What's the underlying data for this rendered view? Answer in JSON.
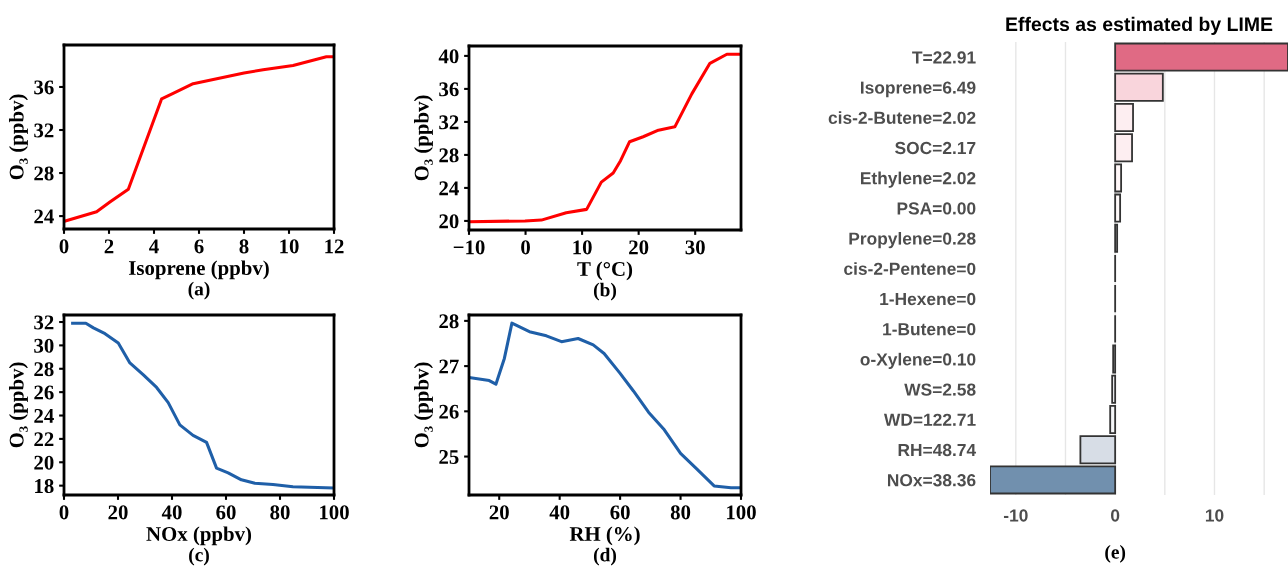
{
  "chart_data": [
    {
      "type": "line",
      "xlabel": "Isoprene (ppbv)",
      "ylabel": "O₃ (ppbv)",
      "annotations": [
        "(a)"
      ],
      "x": [
        0,
        1.45,
        2.04,
        2.86,
        4.34,
        4.85,
        5.74,
        8.0,
        8.85,
        10.18,
        11.66,
        12
      ],
      "series": [
        {
          "color": "#ff0000",
          "values": [
            23.5,
            24.4,
            25.3,
            26.5,
            34.9,
            35.4,
            36.3,
            37.3,
            37.6,
            38.0,
            38.8,
            38.8
          ]
        }
      ],
      "xlim": [
        0,
        12
      ],
      "ylim": [
        22.8,
        39.9
      ],
      "xticks": [
        0,
        2,
        4,
        6,
        8,
        10,
        12
      ],
      "yticks": [
        24,
        28,
        32,
        36
      ],
      "grid": false
    },
    {
      "type": "line",
      "xlabel": "T (°C)",
      "ylabel": "O₃ (ppbv)",
      "annotations": [
        "(b)"
      ],
      "x": [
        -10,
        -0.1,
        2.8,
        7.2,
        10.8,
        13.4,
        15.5,
        16.8,
        18.4,
        20.8,
        23.5,
        26.4,
        29.4,
        32.6,
        35.6,
        37.7
      ],
      "series": [
        {
          "color": "#ff0000",
          "values": [
            19.9,
            20.0,
            20.1,
            21.0,
            21.4,
            24.7,
            25.8,
            27.3,
            29.6,
            30.2,
            31.0,
            31.4,
            35.4,
            39.1,
            40.2,
            40.2
          ]
        }
      ],
      "xlim": [
        -10,
        38.1
      ],
      "ylim": [
        18.9,
        41.2
      ],
      "xticks": [
        {
          "value": -10,
          "label": "−10"
        },
        0,
        10,
        20,
        30
      ],
      "yticks": [
        20,
        24,
        28,
        32,
        36,
        40
      ],
      "grid": false
    },
    {
      "type": "line",
      "xlabel": "NOx (ppbv)",
      "ylabel": "O₃ (ppbv)",
      "annotations": [
        "(c)"
      ],
      "x": [
        3.2,
        8.1,
        10.9,
        15.2,
        20.1,
        24.4,
        29.3,
        34.3,
        38.6,
        42.9,
        47.8,
        52.8,
        56.5,
        60.8,
        65.7,
        70.7,
        77.4,
        84.8,
        100
      ],
      "series": [
        {
          "color": "#1f5fa8",
          "values": [
            31.9,
            31.9,
            31.5,
            31.0,
            30.2,
            28.5,
            27.5,
            26.4,
            25.1,
            23.2,
            22.3,
            21.7,
            19.5,
            19.1,
            18.5,
            18.2,
            18.1,
            17.9,
            17.8
          ]
        }
      ],
      "xlim": [
        0,
        100
      ],
      "ylim": [
        17.2,
        32.6
      ],
      "xticks": [
        0,
        20,
        40,
        60,
        80,
        100
      ],
      "yticks": [
        18,
        20,
        22,
        24,
        26,
        28,
        30,
        32
      ],
      "grid": false
    },
    {
      "type": "line",
      "xlabel": "RH (%)",
      "ylabel": "O₃ (ppbv)",
      "annotations": [
        "(d)"
      ],
      "x": [
        10,
        16.7,
        18.9,
        21.7,
        24.2,
        30,
        35.6,
        40.6,
        46.1,
        51.1,
        54.7,
        60,
        64.4,
        69.4,
        74.4,
        80,
        85,
        91.1,
        96.7,
        100
      ],
      "series": [
        {
          "color": "#1f5fa8",
          "values": [
            26.75,
            26.68,
            26.6,
            27.17,
            27.95,
            27.76,
            27.67,
            27.54,
            27.61,
            27.47,
            27.28,
            26.84,
            26.45,
            25.98,
            25.61,
            25.07,
            24.75,
            24.35,
            24.31,
            24.31
          ]
        }
      ],
      "xlim": [
        10,
        100
      ],
      "ylim": [
        24.15,
        28.13
      ],
      "xticks": [
        20,
        40,
        60,
        80,
        100
      ],
      "yticks": [
        25,
        26,
        27,
        28
      ],
      "grid": false
    },
    {
      "type": "bar",
      "orientation": "horizontal",
      "title": "Effects as estimated by LIME",
      "annotations": [
        "(e)"
      ],
      "categories": [
        "T=22.91",
        "Isoprene=6.49",
        "cis-2-Butene=2.02",
        "SOC=2.17",
        "Ethylene=2.02",
        "PSA=0.00",
        "Propylene=0.28",
        "cis-2-Pentene=0",
        "1-Hexene=0",
        "1-Butene=0",
        "o-Xylene=0.10",
        "WS=2.58",
        "WD=122.71",
        "RH=48.74",
        "NOx=38.36"
      ],
      "values": [
        17.4,
        4.8,
        1.8,
        1.7,
        0.6,
        0.5,
        0.2,
        0,
        0,
        0,
        -0.2,
        -0.3,
        -0.5,
        -3.5,
        -12.6
      ],
      "colors": [
        "#e06a84",
        "#f9d5dc",
        "#fdeef1",
        "#fdeef1",
        "#fff7f8",
        "#fffafa",
        "#fffafa",
        "#333333",
        "#333333",
        "#333333",
        "#f7f8fa",
        "#f7f8fa",
        "#f5f6f8",
        "#d7dde6",
        "#7190ae"
      ],
      "xlim": [
        -12.6,
        17.4
      ],
      "xticks": [
        -10,
        {
          "value": -5,
          "label": null
        },
        0,
        {
          "value": 5,
          "label": null
        },
        10,
        {
          "value": 15,
          "label": null
        }
      ],
      "grid": "x"
    }
  ]
}
